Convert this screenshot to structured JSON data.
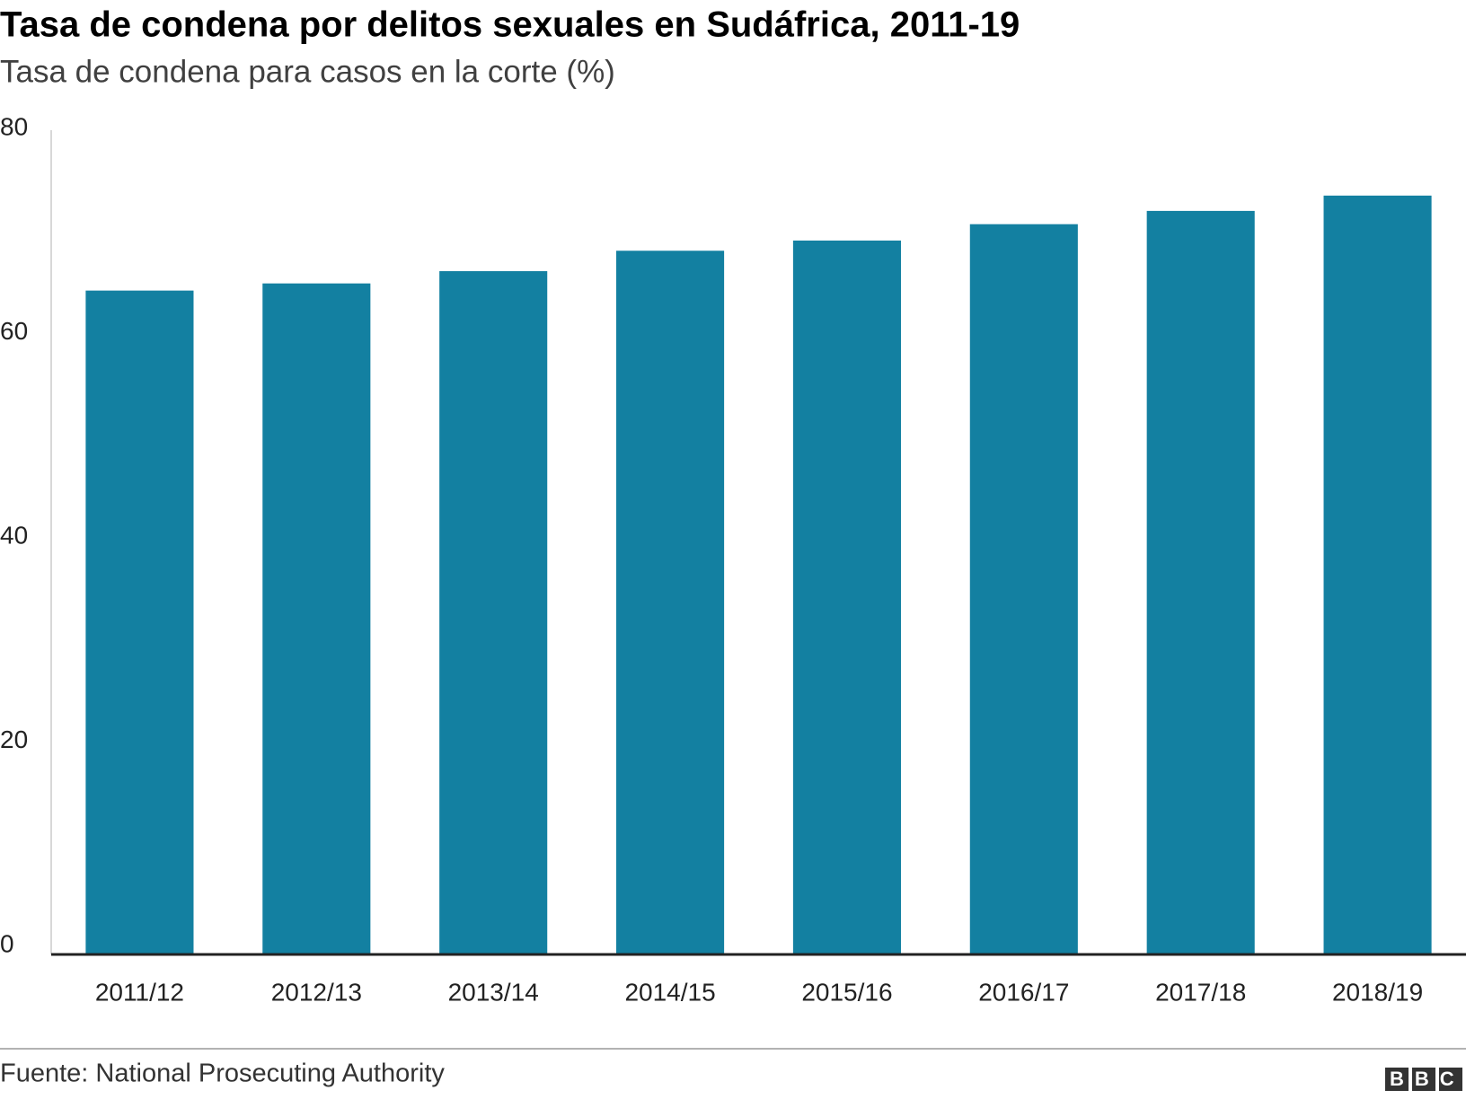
{
  "chart_data": {
    "type": "bar",
    "title": "Tasa de condena por delitos sexuales en Sudáfrica, 2011-19",
    "subtitle": "Tasa de condena para casos en la corte (%)",
    "categories": [
      "2011/12",
      "2012/13",
      "2013/14",
      "2014/15",
      "2015/16",
      "2016/17",
      "2017/18",
      "2018/19"
    ],
    "values": [
      65.0,
      65.7,
      66.9,
      68.9,
      69.9,
      71.5,
      72.8,
      74.3
    ],
    "color": "#1380a1",
    "ylim": [
      0,
      80
    ],
    "yticks": [
      0,
      20,
      40,
      60,
      80
    ],
    "grid": false,
    "source": "Fuente: National Prosecuting Authority",
    "logo": "BBC"
  }
}
